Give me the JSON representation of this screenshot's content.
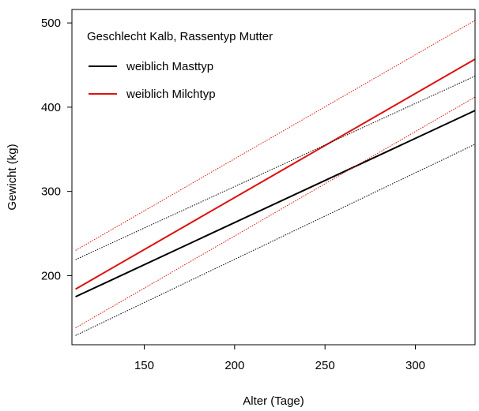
{
  "chart_data": {
    "type": "line",
    "title": "",
    "xlabel": "Alter (Tage)",
    "ylabel": "Gewicht (kg)",
    "xlim": [
      110,
      333
    ],
    "ylim": [
      118,
      516
    ],
    "x_ticks": [
      150,
      200,
      250,
      300
    ],
    "y_ticks": [
      200,
      300,
      400,
      500
    ],
    "grid": false,
    "legend": {
      "title": "Geschlecht Kalb, Rassentyp Mutter",
      "position": "top-left",
      "entries": [
        "weiblich Masttyp",
        "weiblich Milchtyp"
      ]
    },
    "series": [
      {
        "name": "weiblich Masttyp",
        "color": "#000000",
        "style": "solid",
        "x": [
          112,
          333
        ],
        "y": [
          175,
          396
        ]
      },
      {
        "name": "weiblich Milchtyp",
        "color": "#dd1111",
        "style": "solid",
        "x": [
          112,
          333
        ],
        "y": [
          184,
          457
        ]
      },
      {
        "name": "",
        "color": "#000000",
        "style": "dotted",
        "x": [
          112,
          333
        ],
        "y": [
          219,
          437
        ]
      },
      {
        "name": "",
        "color": "#000000",
        "style": "dotted",
        "x": [
          112,
          333
        ],
        "y": [
          129,
          356
        ]
      },
      {
        "name": "",
        "color": "#dd1111",
        "style": "dotted",
        "x": [
          112,
          333
        ],
        "y": [
          230,
          503
        ]
      },
      {
        "name": "",
        "color": "#dd1111",
        "style": "dotted",
        "x": [
          112,
          333
        ],
        "y": [
          138,
          412
        ]
      }
    ]
  }
}
